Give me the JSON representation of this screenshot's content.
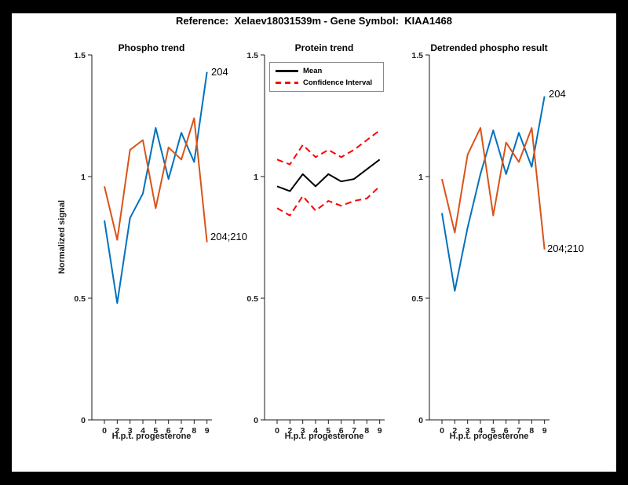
{
  "figure": {
    "title": "Reference:  Xelaev18031539m - Gene Symbol:  KIAA1468",
    "background": "#ffffff",
    "frame_color": "#000000"
  },
  "axes": {
    "x_label": "H.p.t. progesterone",
    "y_label": "Normalized signal",
    "x_tick_labels": [
      "0",
      "2",
      "3",
      "4",
      "5",
      "6",
      "7",
      "8",
      "9"
    ],
    "y_tick_labels": [
      "0",
      "0.5",
      "1",
      "1.5"
    ],
    "y_tick_values": [
      0,
      0.5,
      1,
      1.5
    ],
    "ylim": [
      0,
      1.5
    ],
    "axis_color": "#1a1a1a"
  },
  "colors": {
    "blue": "#0072BD",
    "orange": "#D95319",
    "red": "#FF0000",
    "black": "#000000"
  },
  "legend": {
    "items": [
      {
        "label": "Mean",
        "color": "#000000",
        "dash": false
      },
      {
        "label": "Confidence Interval",
        "color": "#FF0000",
        "dash": true
      }
    ]
  },
  "chart_data": [
    {
      "type": "line",
      "title": "Phospho trend",
      "xlabel": "H.p.t. progesterone",
      "ylabel": "Normalized signal",
      "ylim": [
        0,
        1.5
      ],
      "categories": [
        "0",
        "2",
        "3",
        "4",
        "5",
        "6",
        "7",
        "8",
        "9"
      ],
      "series": [
        {
          "name": "204",
          "end_label": "204",
          "color": "#0072BD",
          "dashed": false,
          "values": [
            0.82,
            0.48,
            0.83,
            0.93,
            1.2,
            0.99,
            1.18,
            1.06,
            1.43
          ]
        },
        {
          "name": "204;210",
          "end_label": "204;210",
          "color": "#D95319",
          "dashed": false,
          "values": [
            0.96,
            0.74,
            1.11,
            1.15,
            0.87,
            1.12,
            1.07,
            1.24,
            0.73
          ]
        }
      ]
    },
    {
      "type": "line",
      "title": "Protein trend",
      "xlabel": "H.p.t. progesterone",
      "ylabel": "",
      "ylim": [
        0,
        1.5
      ],
      "categories": [
        "0",
        "2",
        "3",
        "4",
        "5",
        "6",
        "7",
        "8",
        "9"
      ],
      "series": [
        {
          "name": "Mean",
          "color": "#000000",
          "dashed": false,
          "values": [
            0.96,
            0.94,
            1.01,
            0.96,
            1.01,
            0.98,
            0.99,
            1.03,
            1.07
          ]
        },
        {
          "name": "Confidence Interval upper",
          "color": "#FF0000",
          "dashed": true,
          "values": [
            1.07,
            1.05,
            1.13,
            1.08,
            1.11,
            1.08,
            1.11,
            1.15,
            1.19
          ]
        },
        {
          "name": "Confidence Interval lower",
          "color": "#FF0000",
          "dashed": true,
          "values": [
            0.87,
            0.84,
            0.92,
            0.86,
            0.9,
            0.88,
            0.9,
            0.91,
            0.96
          ]
        }
      ]
    },
    {
      "type": "line",
      "title": "Detrended phospho result",
      "xlabel": "H.p.t. progesterone",
      "ylabel": "",
      "ylim": [
        0,
        1.5
      ],
      "categories": [
        "0",
        "2",
        "3",
        "4",
        "5",
        "6",
        "7",
        "8",
        "9"
      ],
      "series": [
        {
          "name": "204",
          "end_label": "204",
          "color": "#0072BD",
          "dashed": false,
          "values": [
            0.85,
            0.53,
            0.79,
            1.01,
            1.19,
            1.01,
            1.18,
            1.04,
            1.33
          ]
        },
        {
          "name": "204;210",
          "end_label": "204;210",
          "color": "#D95319",
          "dashed": false,
          "values": [
            0.99,
            0.77,
            1.09,
            1.2,
            0.84,
            1.14,
            1.06,
            1.2,
            0.7
          ]
        }
      ]
    }
  ]
}
